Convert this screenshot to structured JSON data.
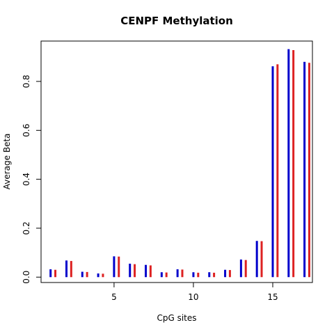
{
  "chart_data": {
    "type": "bar",
    "title": "CENPF Methylation",
    "xlabel": "CpG sites",
    "ylabel": "Average Beta",
    "x": [
      1,
      2,
      3,
      4,
      5,
      6,
      7,
      8,
      9,
      10,
      11,
      12,
      13,
      14,
      15,
      16,
      17
    ],
    "xlim": [
      0.4,
      17.5
    ],
    "ylim": [
      -0.022,
      0.965
    ],
    "xticks": [
      5,
      10,
      15
    ],
    "yticks": [
      0.0,
      0.2,
      0.4,
      0.6,
      0.8
    ],
    "series": [
      {
        "color": "#0000cc",
        "values": [
          0.032,
          0.068,
          0.022,
          0.015,
          0.085,
          0.055,
          0.05,
          0.02,
          0.032,
          0.02,
          0.02,
          0.03,
          0.072,
          0.148,
          0.862,
          0.932,
          0.88
        ]
      },
      {
        "color": "#dd2222",
        "values": [
          0.03,
          0.066,
          0.021,
          0.014,
          0.084,
          0.053,
          0.048,
          0.019,
          0.031,
          0.018,
          0.018,
          0.029,
          0.07,
          0.147,
          0.87,
          0.928,
          0.876
        ]
      }
    ],
    "grid": false
  }
}
